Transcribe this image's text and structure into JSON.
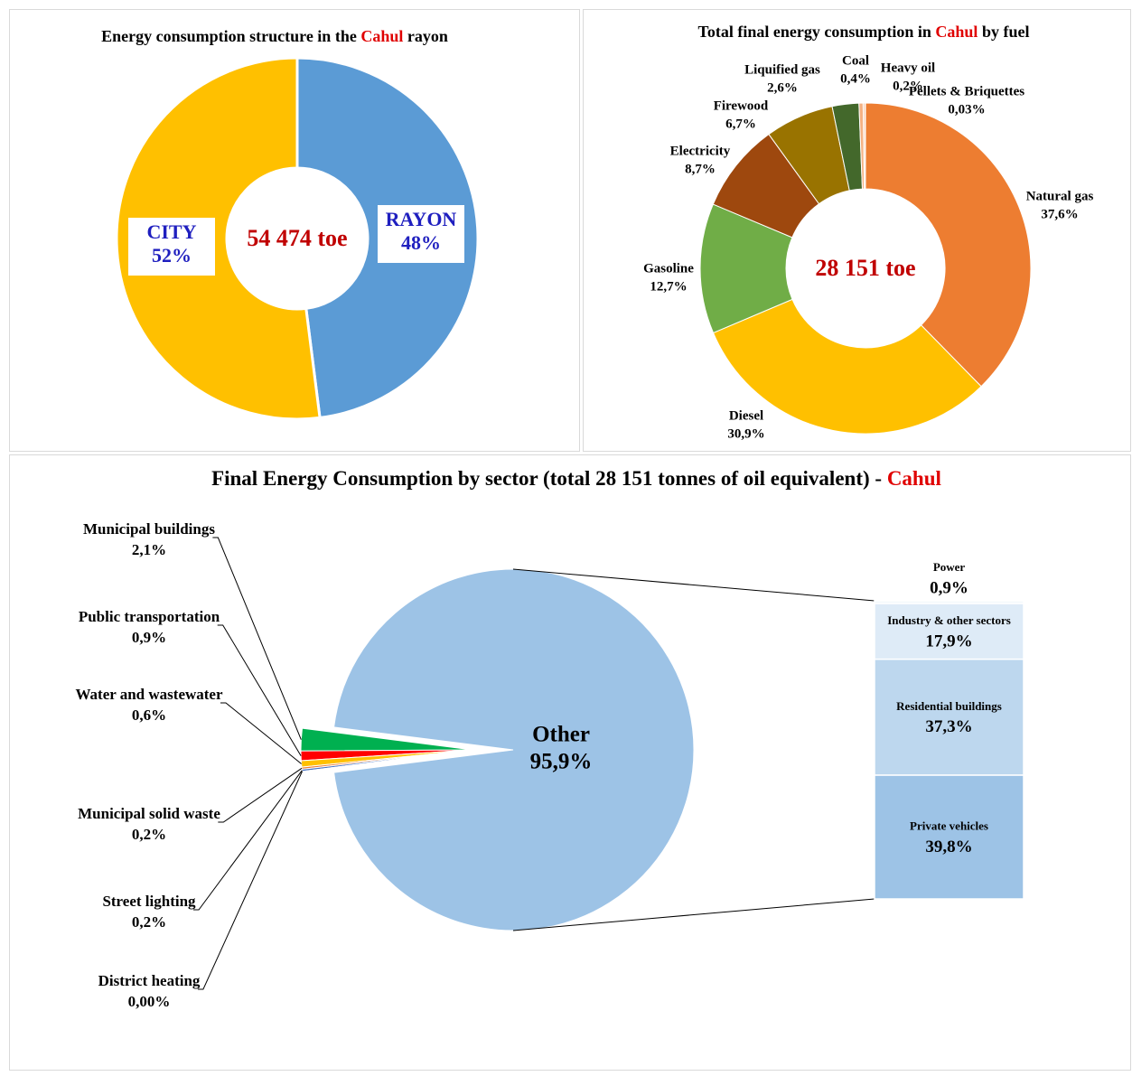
{
  "chart_data": [
    {
      "type": "donut",
      "title": [
        {
          "text": "Energy consumption structure in the ",
          "color": "#000000"
        },
        {
          "text": "Cahul",
          "color": "#e00000"
        },
        {
          "text": " rayon",
          "color": "#000000"
        }
      ],
      "center_label": "54 474 toe",
      "categories": [
        "RAYON",
        "CITY"
      ],
      "values": [
        48,
        52
      ],
      "value_labels": [
        "48%",
        "52%"
      ],
      "colors": [
        "#5b9bd5",
        "#ffc000"
      ]
    },
    {
      "type": "donut",
      "title": [
        {
          "text": "Total final energy consumption in ",
          "color": "#000000"
        },
        {
          "text": "Cahul",
          "color": "#e00000"
        },
        {
          "text": " by fuel",
          "color": "#000000"
        }
      ],
      "center_label": "28 151 toe",
      "categories": [
        "Natural gas",
        "Diesel",
        "Gasoline",
        "Electricity",
        "Firewood",
        "Liquified gas",
        "Coal",
        "Heavy oil",
        "Pellets & Briquettes"
      ],
      "values": [
        37.6,
        30.9,
        12.7,
        8.7,
        6.7,
        2.6,
        0.4,
        0.2,
        0.03
      ],
      "value_labels": [
        "37,6%",
        "30,9%",
        "12,7%",
        "8,7%",
        "6,7%",
        "2,6%",
        "0,4%",
        "0,2%",
        "0,03%"
      ],
      "colors": [
        "#ed7d31",
        "#ffc000",
        "#70ad47",
        "#9e480e",
        "#997300",
        "#43682b",
        "#f4b183",
        "#f8cbad",
        "#fbe5d6"
      ]
    },
    {
      "type": "bar-of-pie",
      "title": [
        {
          "text": "Final Energy Consumption by sector (total 28 151 tonnes of oil equivalent) - ",
          "color": "#000000"
        },
        {
          "text": "Cahul",
          "color": "#e00000"
        }
      ],
      "categories": [
        "Municipal buildings",
        "Public transportation",
        "Water and wastewater",
        "Municipal solid waste",
        "Street lighting",
        "District heating",
        "Other"
      ],
      "values": [
        2.1,
        0.9,
        0.6,
        0.2,
        0.2,
        0,
        95.9
      ],
      "value_labels": [
        "2,1%",
        "0,9%",
        "0,6%",
        "0,2%",
        "0,2%",
        "0,00%",
        "95,9%"
      ],
      "colors": [
        "#00b050",
        "#ff0000",
        "#ffc000",
        "#ed7d31",
        "#4472c4",
        "#7030a0",
        "#9dc3e6"
      ],
      "breakdown": {
        "categories": [
          "Power",
          "Industry & other sectors",
          "Residential buildings",
          "Private vehicles"
        ],
        "values": [
          0.9,
          17.9,
          37.3,
          39.8
        ],
        "value_labels": [
          "0,9%",
          "17,9%",
          "37,3%",
          "39,8%"
        ],
        "colors": [
          "#f3f8fc",
          "#deebf7",
          "#bdd7ee",
          "#9dc3e6"
        ]
      }
    }
  ]
}
